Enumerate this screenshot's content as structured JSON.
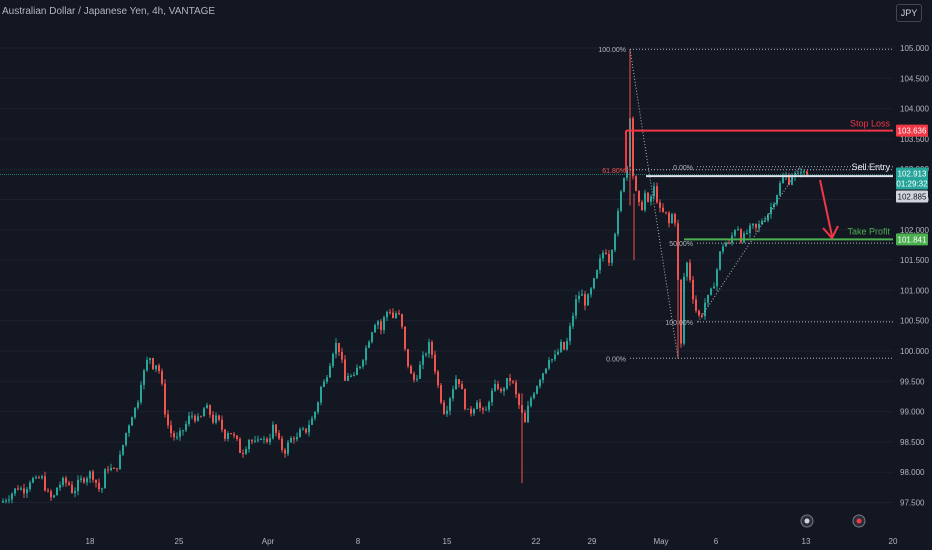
{
  "header": {
    "title": "Australian Dollar / Japanese Yen, 4h, VANTAGE",
    "currency_button": "JPY"
  },
  "colors": {
    "background": "#131722",
    "up": "#26a69a",
    "down": "#ef5350",
    "stop_loss": "#f23645",
    "take_profit": "#4caf50",
    "entry": "#e0e3eb",
    "axis_text": "#b2b5be"
  },
  "chart_data": {
    "type": "candlestick",
    "symbol": "Australian Dollar / Japanese Yen",
    "interval": "4h",
    "broker": "VANTAGE",
    "ylim": [
      97.3,
      105.25
    ],
    "y_ticks": [
      "97.500",
      "98.000",
      "98.500",
      "99.000",
      "99.500",
      "100.000",
      "100.500",
      "101.000",
      "101.500",
      "102.000",
      "102.500",
      "103.000",
      "103.500",
      "104.000",
      "104.500",
      "105.000"
    ],
    "x_ticks": [
      "18",
      "25",
      "Apr",
      "8",
      "15",
      "22",
      "29",
      "May",
      "6",
      "13",
      "20"
    ],
    "levels": {
      "stop_loss": {
        "label": "Stop Loss",
        "value": 103.636
      },
      "sell_entry": {
        "label": "Sell Entry",
        "value": 102.885
      },
      "take_profit": {
        "label": "Take Profit",
        "value": 101.841
      }
    },
    "price_labels": {
      "current": "102.913",
      "countdown": "01:29:32",
      "entry": "102.885",
      "stop": "103.636",
      "tp": "101.841"
    },
    "fib_major": [
      {
        "label": "100.00%",
        "value": 104.98
      },
      {
        "label": "61.80%",
        "value": 102.99
      },
      {
        "label": "0.00%",
        "value": 99.88
      }
    ],
    "fib_minor": [
      {
        "label": "0.00%",
        "value": 103.04
      },
      {
        "label": "50.00%",
        "value": 101.78
      },
      {
        "label": "100.00%",
        "value": 100.48
      }
    ],
    "series_path": [
      [
        0,
        97.5
      ],
      [
        8,
        97.6
      ],
      [
        16,
        97.75
      ],
      [
        24,
        97.7
      ],
      [
        30,
        97.9
      ],
      [
        36,
        97.85
      ],
      [
        40,
        97.95
      ],
      [
        44,
        97.75
      ],
      [
        48,
        97.6
      ],
      [
        52,
        97.55
      ],
      [
        56,
        97.75
      ],
      [
        62,
        97.85
      ],
      [
        68,
        97.8
      ],
      [
        72,
        97.65
      ],
      [
        78,
        97.85
      ],
      [
        84,
        97.9
      ],
      [
        90,
        98.0
      ],
      [
        96,
        97.8
      ],
      [
        100,
        97.65
      ],
      [
        104,
        98.0
      ],
      [
        108,
        98.1
      ],
      [
        112,
        98.0
      ],
      [
        116,
        98.1
      ],
      [
        120,
        98.3
      ],
      [
        124,
        98.6
      ],
      [
        128,
        98.8
      ],
      [
        132,
        99.0
      ],
      [
        136,
        99.1
      ],
      [
        140,
        99.5
      ],
      [
        144,
        99.7
      ],
      [
        148,
        99.95
      ],
      [
        152,
        99.75
      ],
      [
        156,
        99.8
      ],
      [
        160,
        99.55
      ],
      [
        164,
        99.0
      ],
      [
        168,
        98.7
      ],
      [
        172,
        98.6
      ],
      [
        176,
        98.55
      ],
      [
        180,
        98.65
      ],
      [
        184,
        98.75
      ],
      [
        188,
        98.9
      ],
      [
        192,
        98.95
      ],
      [
        196,
        98.85
      ],
      [
        200,
        98.9
      ],
      [
        204,
        99.1
      ],
      [
        208,
        99.0
      ],
      [
        212,
        98.85
      ],
      [
        216,
        98.9
      ],
      [
        220,
        98.75
      ],
      [
        224,
        98.6
      ],
      [
        228,
        98.7
      ],
      [
        232,
        98.6
      ],
      [
        236,
        98.5
      ],
      [
        240,
        98.3
      ],
      [
        244,
        98.4
      ],
      [
        248,
        98.55
      ],
      [
        252,
        98.5
      ],
      [
        256,
        98.45
      ],
      [
        260,
        98.6
      ],
      [
        264,
        98.5
      ],
      [
        268,
        98.55
      ],
      [
        272,
        98.75
      ],
      [
        276,
        98.6
      ],
      [
        280,
        98.4
      ],
      [
        284,
        98.35
      ],
      [
        288,
        98.5
      ],
      [
        292,
        98.6
      ],
      [
        296,
        98.55
      ],
      [
        300,
        98.7
      ],
      [
        304,
        98.65
      ],
      [
        308,
        98.8
      ],
      [
        312,
        98.9
      ],
      [
        316,
        99.1
      ],
      [
        320,
        99.4
      ],
      [
        324,
        99.5
      ],
      [
        328,
        99.75
      ],
      [
        332,
        100.0
      ],
      [
        336,
        100.15
      ],
      [
        340,
        99.9
      ],
      [
        344,
        99.5
      ],
      [
        348,
        99.65
      ],
      [
        352,
        99.5
      ],
      [
        356,
        99.7
      ],
      [
        360,
        99.8
      ],
      [
        364,
        100.0
      ],
      [
        368,
        100.2
      ],
      [
        372,
        100.4
      ],
      [
        376,
        100.55
      ],
      [
        380,
        100.35
      ],
      [
        384,
        100.6
      ],
      [
        388,
        100.7
      ],
      [
        392,
        100.55
      ],
      [
        396,
        100.65
      ],
      [
        400,
        100.5
      ],
      [
        404,
        100.0
      ],
      [
        408,
        99.7
      ],
      [
        412,
        99.5
      ],
      [
        416,
        99.6
      ],
      [
        420,
        99.8
      ],
      [
        424,
        99.95
      ],
      [
        428,
        100.1
      ],
      [
        432,
        99.9
      ],
      [
        436,
        99.5
      ],
      [
        440,
        99.2
      ],
      [
        444,
        98.95
      ],
      [
        448,
        99.2
      ],
      [
        452,
        99.4
      ],
      [
        456,
        99.6
      ],
      [
        460,
        99.4
      ],
      [
        464,
        99.1
      ],
      [
        468,
        98.95
      ],
      [
        472,
        99.05
      ],
      [
        476,
        99.2
      ],
      [
        480,
        99.0
      ],
      [
        484,
        98.95
      ],
      [
        488,
        99.2
      ],
      [
        492,
        99.35
      ],
      [
        496,
        99.45
      ],
      [
        500,
        99.3
      ],
      [
        504,
        99.45
      ],
      [
        508,
        99.55
      ],
      [
        512,
        99.45
      ],
      [
        516,
        99.2
      ],
      [
        520,
        99.0
      ],
      [
        524,
        98.8
      ],
      [
        528,
        99.15
      ],
      [
        532,
        99.3
      ],
      [
        536,
        99.45
      ],
      [
        540,
        99.6
      ],
      [
        544,
        99.7
      ],
      [
        548,
        99.9
      ],
      [
        552,
        99.85
      ],
      [
        556,
        99.95
      ],
      [
        560,
        100.1
      ],
      [
        564,
        100.0
      ],
      [
        568,
        100.3
      ],
      [
        572,
        100.6
      ],
      [
        576,
        100.9
      ],
      [
        580,
        100.95
      ],
      [
        584,
        100.8
      ],
      [
        588,
        100.9
      ],
      [
        592,
        101.1
      ],
      [
        596,
        101.3
      ],
      [
        600,
        101.55
      ],
      [
        604,
        101.7
      ],
      [
        608,
        101.5
      ],
      [
        612,
        101.8
      ],
      [
        616,
        102.15
      ],
      [
        620,
        102.6
      ],
      [
        624,
        103.0
      ],
      [
        628,
        103.1
      ],
      [
        630,
        104.7
      ],
      [
        632,
        102.9
      ],
      [
        636,
        102.5
      ],
      [
        640,
        102.3
      ],
      [
        644,
        102.6
      ],
      [
        648,
        102.35
      ],
      [
        652,
        102.75
      ],
      [
        656,
        102.5
      ],
      [
        660,
        102.25
      ],
      [
        664,
        102.3
      ],
      [
        668,
        102.1
      ],
      [
        672,
        102.3
      ],
      [
        676,
        102.0
      ],
      [
        678,
        100.3
      ],
      [
        680,
        100.1
      ],
      [
        684,
        101.6
      ],
      [
        688,
        101.3
      ],
      [
        692,
        100.9
      ],
      [
        696,
        100.6
      ],
      [
        700,
        100.55
      ],
      [
        704,
        100.8
      ],
      [
        708,
        100.9
      ],
      [
        712,
        101.05
      ],
      [
        716,
        101.35
      ],
      [
        720,
        101.7
      ],
      [
        724,
        101.8
      ],
      [
        728,
        101.75
      ],
      [
        732,
        101.95
      ],
      [
        736,
        102.1
      ],
      [
        740,
        101.85
      ],
      [
        744,
        101.9
      ],
      [
        748,
        102.0
      ],
      [
        752,
        102.05
      ],
      [
        756,
        102.0
      ],
      [
        760,
        102.15
      ],
      [
        764,
        102.2
      ],
      [
        768,
        102.3
      ],
      [
        772,
        102.45
      ],
      [
        776,
        102.6
      ],
      [
        780,
        102.8
      ],
      [
        784,
        102.9
      ],
      [
        788,
        102.8
      ],
      [
        792,
        102.95
      ],
      [
        796,
        102.85
      ],
      [
        800,
        103.0
      ],
      [
        804,
        102.9
      ],
      [
        808,
        102.88
      ]
    ]
  }
}
